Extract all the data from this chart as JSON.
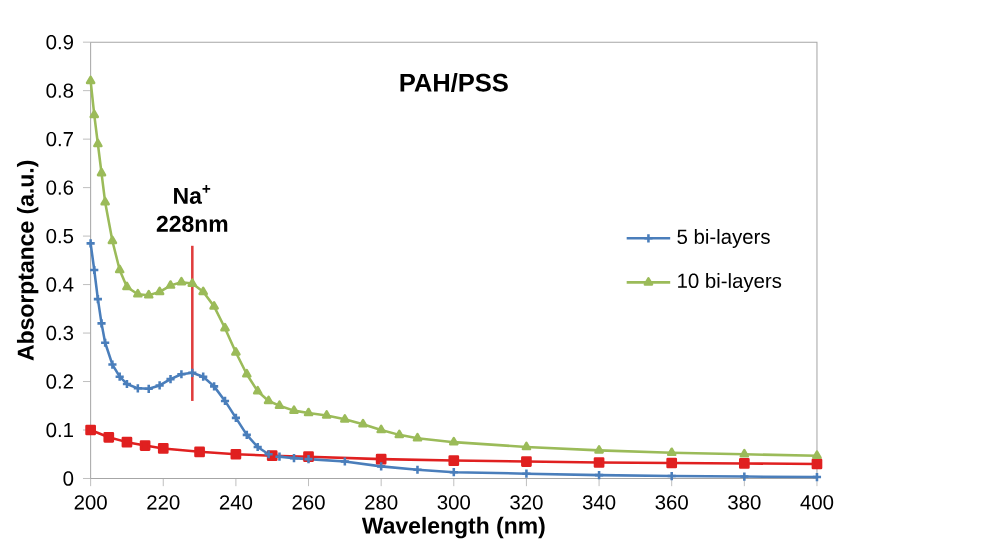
{
  "chart_data": {
    "type": "line",
    "title": "PAH/PSS",
    "xlabel": "Wavelength (nm)",
    "ylabel": "Absorptance (a.u.)",
    "xlim": [
      200,
      400
    ],
    "xticks": [
      200,
      220,
      240,
      260,
      280,
      300,
      320,
      340,
      360,
      380,
      400
    ],
    "ylim": [
      0,
      0.9
    ],
    "yticks": [
      0,
      0.1,
      0.2,
      0.3,
      0.4,
      0.5,
      0.6,
      0.7,
      0.8,
      0.9
    ],
    "legend": "right",
    "grid": false,
    "ref_lines": [
      {
        "axis": "x",
        "value": 228,
        "label": "Na$^{+}$ 228nm",
        "color": "#e03c3c"
      }
    ],
    "series": [
      {
        "name": "5 bi-layers",
        "color": "#4a7ebb",
        "marker": "cross",
        "x": [
          200,
          201,
          202,
          203,
          204,
          206,
          208,
          210,
          213,
          216,
          219,
          222,
          225,
          228,
          231,
          234,
          237,
          240,
          243,
          246,
          249,
          252,
          256,
          260,
          270,
          280,
          290,
          300,
          320,
          340,
          360,
          380,
          400
        ],
        "values": [
          0.485,
          0.43,
          0.37,
          0.32,
          0.28,
          0.235,
          0.21,
          0.195,
          0.186,
          0.185,
          0.192,
          0.205,
          0.215,
          0.218,
          0.21,
          0.19,
          0.16,
          0.125,
          0.09,
          0.065,
          0.05,
          0.045,
          0.042,
          0.04,
          0.035,
          0.025,
          0.018,
          0.013,
          0.01,
          0.007,
          0.005,
          0.004,
          0.003
        ]
      },
      {
        "name": "10 bi-layers",
        "color": "#9bbb59",
        "marker": "triangle",
        "x": [
          200,
          201,
          202,
          203,
          204,
          206,
          208,
          210,
          213,
          216,
          219,
          222,
          225,
          228,
          231,
          234,
          237,
          240,
          243,
          246,
          249,
          252,
          256,
          260,
          265,
          270,
          275,
          280,
          285,
          290,
          300,
          320,
          340,
          360,
          380,
          400
        ],
        "values": [
          0.82,
          0.75,
          0.69,
          0.63,
          0.57,
          0.49,
          0.43,
          0.395,
          0.38,
          0.378,
          0.385,
          0.398,
          0.405,
          0.402,
          0.385,
          0.355,
          0.31,
          0.26,
          0.215,
          0.18,
          0.16,
          0.15,
          0.14,
          0.135,
          0.13,
          0.122,
          0.112,
          0.1,
          0.09,
          0.083,
          0.075,
          0.065,
          0.058,
          0.053,
          0.05,
          0.047
        ]
      },
      {
        "color": "#e02020",
        "marker": "square",
        "x": [
          200,
          205,
          210,
          215,
          220,
          230,
          240,
          250,
          260,
          280,
          300,
          320,
          340,
          360,
          380,
          400
        ],
        "values": [
          0.1,
          0.085,
          0.075,
          0.068,
          0.062,
          0.055,
          0.05,
          0.047,
          0.045,
          0.04,
          0.037,
          0.035,
          0.033,
          0.032,
          0.031,
          0.03
        ]
      }
    ]
  }
}
